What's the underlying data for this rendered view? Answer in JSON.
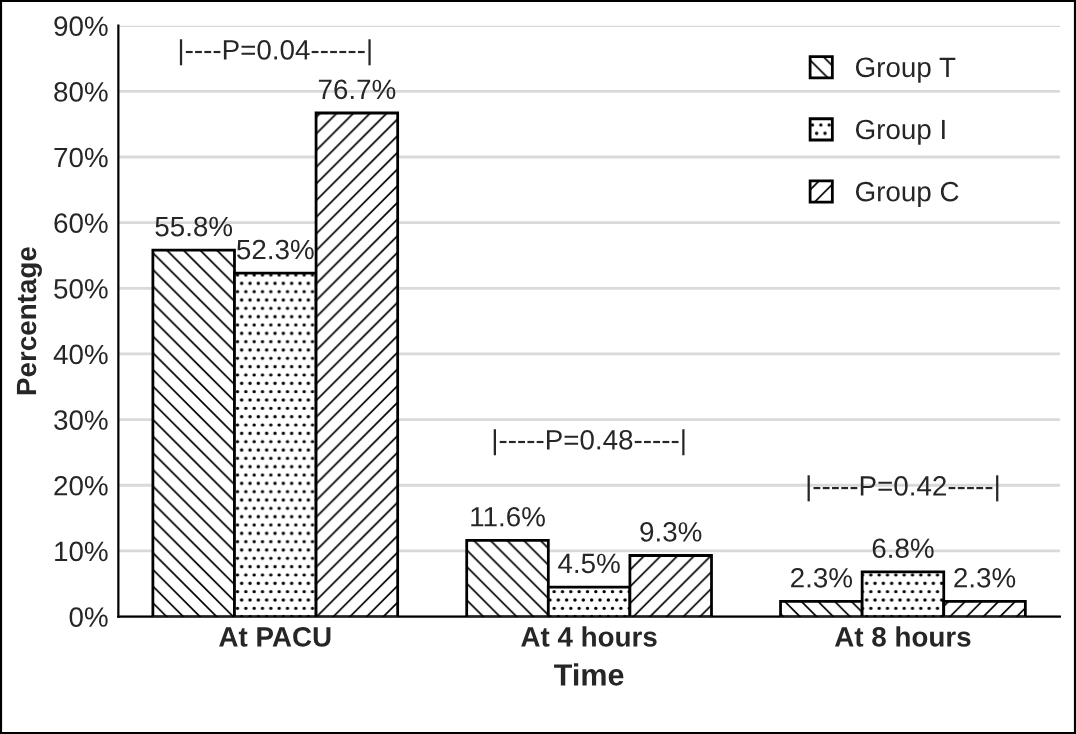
{
  "chart_data": {
    "type": "bar",
    "xlabel": "Time",
    "ylabel": "Percentage",
    "categories": [
      "At PACU",
      "At 4 hours",
      "At 8 hours"
    ],
    "series": [
      {
        "name": "Group T",
        "color": "#000000",
        "values": [
          55.8,
          11.6,
          2.3
        ],
        "value_labels": [
          "55.8%",
          "11.6%",
          "2.3%"
        ]
      },
      {
        "name": "Group I",
        "color": "#000000",
        "values": [
          52.3,
          4.5,
          6.8
        ],
        "value_labels": [
          "52.3%",
          "4.5%",
          "6.8%"
        ]
      },
      {
        "name": "Group C",
        "color": "#000000",
        "values": [
          76.7,
          9.3,
          2.3
        ],
        "value_labels": [
          "76.7%",
          "9.3%",
          "2.3%"
        ]
      }
    ],
    "ylim": [
      0,
      90
    ],
    "yticks": [
      {
        "value": 0,
        "label": "0%"
      },
      {
        "value": 10,
        "label": "10%"
      },
      {
        "value": 20,
        "label": "20%"
      },
      {
        "value": 30,
        "label": "30%"
      },
      {
        "value": 40,
        "label": "40%"
      },
      {
        "value": 50,
        "label": "50%"
      },
      {
        "value": 60,
        "label": "60%"
      },
      {
        "value": 70,
        "label": "70%"
      },
      {
        "value": 80,
        "label": "80%"
      },
      {
        "value": 90,
        "label": "90%"
      }
    ],
    "annotations": [
      "|----P=0.04------|",
      "|-----P=0.48-----|",
      "|-----P=0.42-----|"
    ],
    "grid": "y",
    "legend": "top right"
  }
}
